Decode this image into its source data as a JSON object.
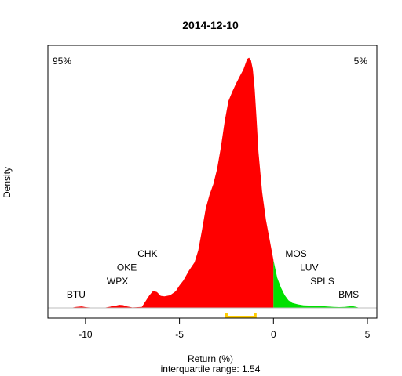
{
  "chart_data": {
    "type": "area",
    "title": "2014-12-10",
    "xlabel": "Return (%)",
    "subtitle": "interquartile range: 1.54",
    "ylabel": "Density",
    "xlim": [
      -12,
      5.5
    ],
    "x_ticks": [
      -10,
      -5,
      0,
      5
    ],
    "threshold": 0,
    "left_percent": "95%",
    "right_percent": "5%",
    "colors": {
      "left": "#ff0000",
      "right": "#00e000",
      "bracket": "#ffcc00",
      "left_pct": "#ff0000",
      "right_pct": "#008000",
      "baseline": "#bebebe"
    },
    "iqr_range": [
      -2.5,
      -0.96
    ],
    "density": {
      "x": [
        -10.8,
        -10.5,
        -10.2,
        -10.0,
        -9.5,
        -9.0,
        -8.5,
        -8.2,
        -8.0,
        -7.8,
        -7.5,
        -7.0,
        -6.6,
        -6.4,
        -6.2,
        -6.0,
        -5.8,
        -5.5,
        -5.2,
        -5.0,
        -4.8,
        -4.5,
        -4.2,
        -4.0,
        -3.8,
        -3.6,
        -3.4,
        -3.2,
        -3.0,
        -2.8,
        -2.6,
        -2.4,
        -2.2,
        -2.0,
        -1.8,
        -1.6,
        -1.4,
        -1.3,
        -1.2,
        -1.1,
        -1.0,
        -0.9,
        -0.8,
        -0.6,
        -0.4,
        -0.2,
        0.0,
        0.2,
        0.4,
        0.6,
        0.8,
        1.0,
        1.3,
        1.6,
        2.0,
        2.4,
        2.8,
        3.2,
        3.5,
        3.8,
        4.0,
        4.2,
        4.4,
        4.6
      ],
      "y": [
        0.0,
        0.004,
        0.006,
        0.003,
        0.0,
        0.001,
        0.007,
        0.012,
        0.011,
        0.006,
        0.002,
        0.004,
        0.05,
        0.068,
        0.063,
        0.048,
        0.046,
        0.05,
        0.066,
        0.089,
        0.108,
        0.148,
        0.181,
        0.228,
        0.31,
        0.396,
        0.45,
        0.492,
        0.552,
        0.638,
        0.74,
        0.822,
        0.858,
        0.89,
        0.92,
        0.948,
        0.99,
        0.995,
        0.985,
        0.95,
        0.87,
        0.75,
        0.62,
        0.46,
        0.35,
        0.27,
        0.19,
        0.12,
        0.08,
        0.05,
        0.03,
        0.02,
        0.014,
        0.01,
        0.009,
        0.008,
        0.006,
        0.004,
        0.003,
        0.004,
        0.006,
        0.007,
        0.004,
        0.0
      ]
    },
    "stock_labels": [
      {
        "name": "BTU",
        "x": -10.5,
        "y": 0.041
      },
      {
        "name": "WPX",
        "x": -8.3,
        "y": 0.094
      },
      {
        "name": "OKE",
        "x": -7.8,
        "y": 0.148
      },
      {
        "name": "CHK",
        "x": -6.7,
        "y": 0.202
      },
      {
        "name": "MOS",
        "x": 1.2,
        "y": 0.202
      },
      {
        "name": "LUV",
        "x": 1.9,
        "y": 0.148
      },
      {
        "name": "SPLS",
        "x": 2.6,
        "y": 0.094
      },
      {
        "name": "BMS",
        "x": 4.0,
        "y": 0.041
      }
    ]
  }
}
